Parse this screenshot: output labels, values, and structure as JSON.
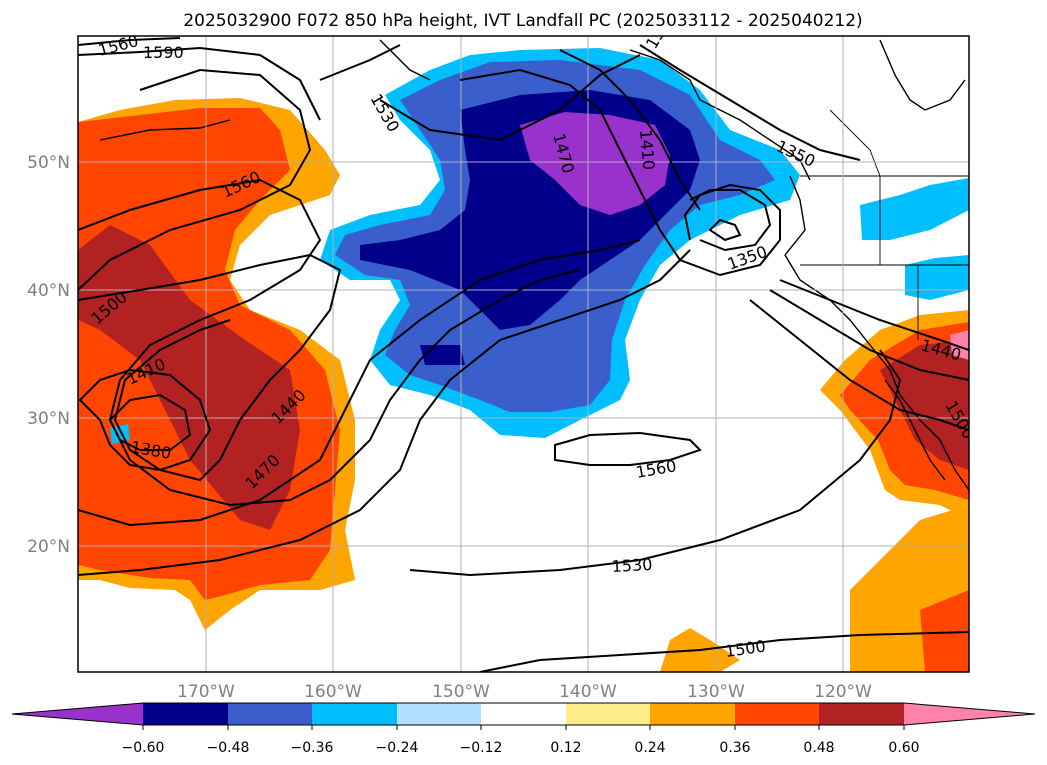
{
  "title": "2025032900 F072 850 hPa height, IVT Landfall PC (2025033112 - 2025040212)",
  "lat_ticks": [
    "50°N",
    "40°N",
    "30°N",
    "20°N"
  ],
  "lon_ticks": [
    "170°W",
    "160°W",
    "150°W",
    "140°W",
    "130°W",
    "120°W"
  ],
  "contour_labels": [
    "1560",
    "1590",
    "1530",
    "1560",
    "1470",
    "1410",
    "1380",
    "1350",
    "1350",
    "1500",
    "1410",
    "1380",
    "1440",
    "1470",
    "1560",
    "1530",
    "1500",
    "1440",
    "1500"
  ],
  "colorbar": {
    "ticks": [
      "−0.60",
      "−0.48",
      "−0.36",
      "−0.24",
      "−0.12",
      "0.12",
      "0.24",
      "0.36",
      "0.48",
      "0.60"
    ],
    "colors": [
      "#9932cc",
      "#00008b",
      "#3a5fcd",
      "#00bfff",
      "#b0e2ff",
      "#ffffff",
      "#ffec8b",
      "#ffa500",
      "#ff4500",
      "#b22222",
      "#ff82ab"
    ]
  }
}
